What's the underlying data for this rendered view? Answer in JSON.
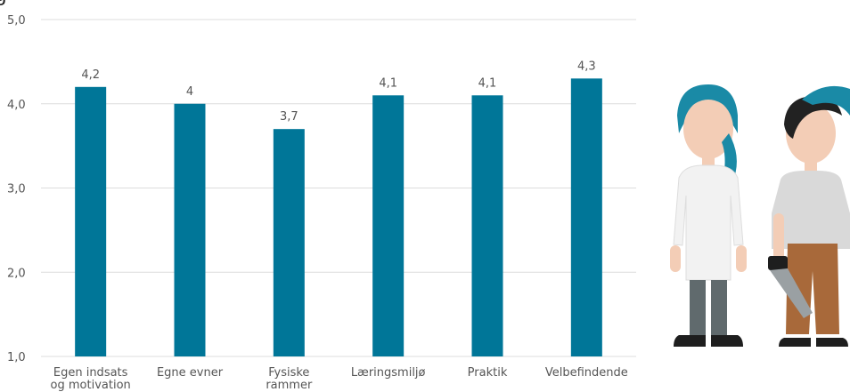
{
  "header": {
    "partial_title": "g"
  },
  "chart_data": {
    "type": "bar",
    "categories": [
      [
        "Egen indsats",
        "og motivation"
      ],
      [
        "Egne evner"
      ],
      [
        "Fysiske",
        "rammer"
      ],
      [
        "Læringsmiljø"
      ],
      [
        "Praktik"
      ],
      [
        "Velbefindende"
      ]
    ],
    "values": [
      4.2,
      4.0,
      3.7,
      4.1,
      4.1,
      4.3
    ],
    "data_labels": [
      "4,2",
      "4",
      "3,7",
      "4,1",
      "4,1",
      "4,3"
    ],
    "ylim": [
      1.0,
      5.0
    ],
    "yticks": [
      1.0,
      2.0,
      3.0,
      4.0,
      5.0
    ],
    "ytick_labels": [
      "1,0",
      "2,0",
      "3,0",
      "4,0",
      "5,0"
    ],
    "grid": true,
    "colors": {
      "bar": "#007698",
      "grid": "#dcdcdc",
      "text": "#555555"
    }
  },
  "illustration": {
    "description_icons": [
      "nurse-figure-icon",
      "carpenter-figure-icon",
      "handsaw-icon"
    ],
    "colors": {
      "hair_teal": "#1a8aa6",
      "skin": "#f3cdb6",
      "uniform": "#f2f2f2",
      "pants_grey": "#606a6d",
      "shirt_grey": "#d9d9d9",
      "pants_brown": "#a8693a",
      "hair_dark": "#222222"
    }
  }
}
